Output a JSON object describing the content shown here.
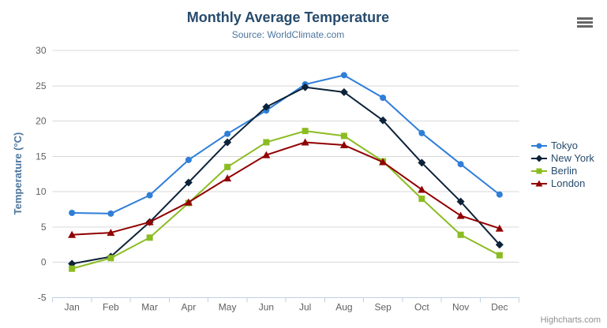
{
  "chart_data": {
    "type": "line",
    "title": "Monthly Average Temperature",
    "subtitle": "Source: WorldClimate.com",
    "categories": [
      "Jan",
      "Feb",
      "Mar",
      "Apr",
      "May",
      "Jun",
      "Jul",
      "Aug",
      "Sep",
      "Oct",
      "Nov",
      "Dec"
    ],
    "series": [
      {
        "name": "Tokyo",
        "marker": "circle",
        "color": "#2f7ed8",
        "values": [
          7.0,
          6.9,
          9.5,
          14.5,
          18.2,
          21.5,
          25.2,
          26.5,
          23.3,
          18.3,
          13.9,
          9.6
        ]
      },
      {
        "name": "New York",
        "marker": "diamond",
        "color": "#0d233a",
        "values": [
          -0.2,
          0.8,
          5.7,
          11.3,
          17.0,
          22.0,
          24.8,
          24.1,
          20.1,
          14.1,
          8.6,
          2.5
        ]
      },
      {
        "name": "Berlin",
        "marker": "square",
        "color": "#8bbc21",
        "values": [
          -0.9,
          0.6,
          3.5,
          8.4,
          13.5,
          17.0,
          18.6,
          17.9,
          14.3,
          9.0,
          3.9,
          1.0
        ]
      },
      {
        "name": "London",
        "marker": "triangle",
        "color": "#910000",
        "values": [
          3.9,
          4.2,
          5.7,
          8.5,
          11.9,
          15.2,
          17.0,
          16.6,
          14.2,
          10.3,
          6.6,
          4.8
        ]
      }
    ],
    "xlabel": "",
    "ylabel": "Temperature (°C)",
    "ylim": [
      -5,
      30
    ],
    "ytick_interval": 5,
    "yticks": [
      -5,
      0,
      5,
      10,
      15,
      20,
      25,
      30
    ],
    "grid": true,
    "legend_position": "right"
  },
  "colors": {
    "title": "#274b6d",
    "subtitle": "#4d759e",
    "y_axis_title": "#4d759e",
    "axis_label": "#606060",
    "gridline": "#d8d8d8",
    "axis_line": "#c0d0e0",
    "legend_text": "#274b6d",
    "credits": "#909090",
    "menu_icon": "#666666",
    "background": "#ffffff"
  },
  "menu": {
    "icon": "hamburger-menu-icon"
  },
  "credits": {
    "label": "Highcharts.com"
  }
}
